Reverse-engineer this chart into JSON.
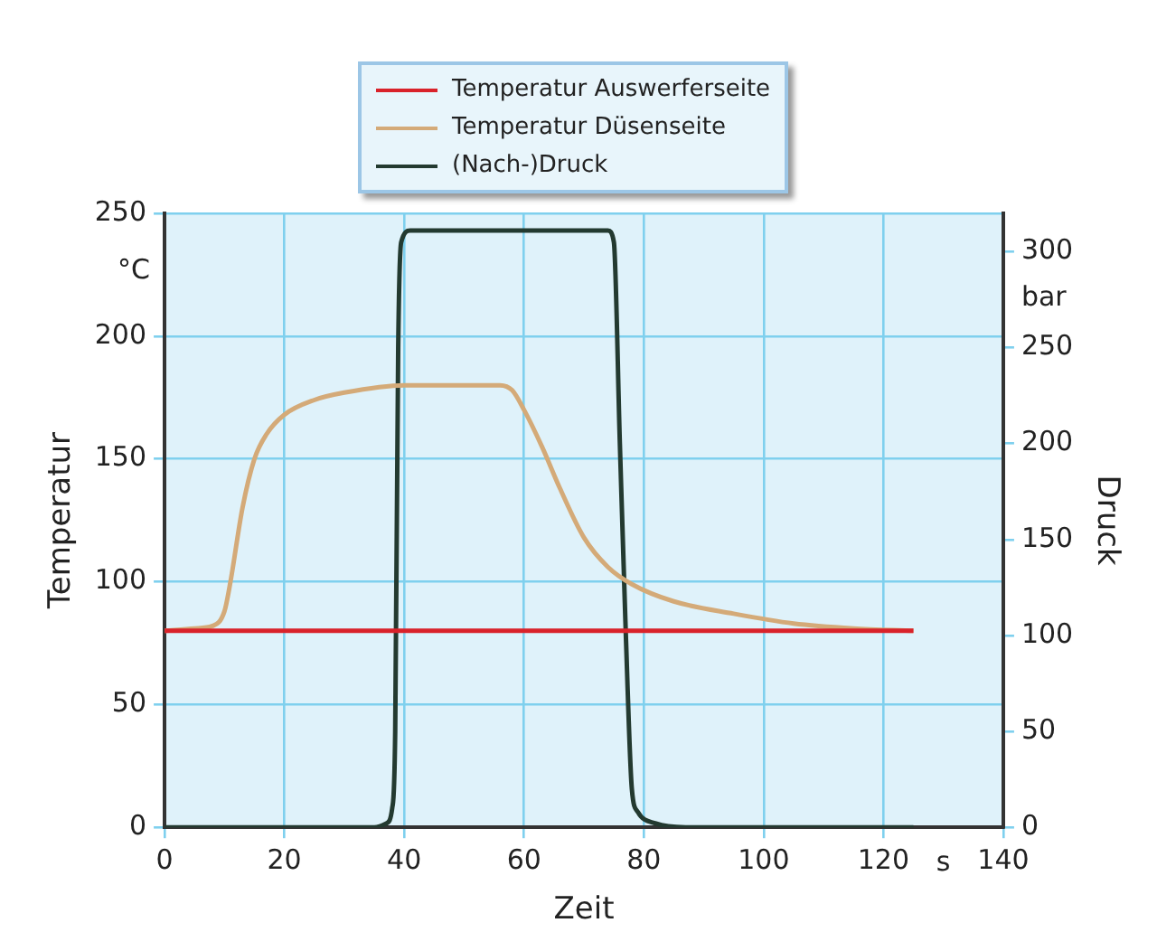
{
  "chart_data": {
    "type": "line",
    "xlabel": "Zeit",
    "ylabel": "Temperatur",
    "y2label": "Druck",
    "annotations": [
      "°C",
      "bar",
      "s"
    ],
    "xlim": [
      0,
      140
    ],
    "xticks": [
      0,
      20,
      40,
      60,
      80,
      100,
      120,
      140
    ],
    "ylim": [
      0,
      250
    ],
    "yticks": [
      0,
      50,
      100,
      150,
      200,
      250
    ],
    "y2lim": [
      0,
      320
    ],
    "y2ticks": [
      0,
      50,
      100,
      150,
      200,
      250,
      300
    ],
    "grid": true,
    "legend": "top",
    "marker": "none",
    "line_style": "solid",
    "series": [
      {
        "name": "Temperatur Auswerferseite",
        "color": "#d9222a",
        "x": [
          0,
          125
        ],
        "values": [
          80,
          80
        ]
      },
      {
        "name": "Temperatur Düsenseite",
        "color": "#d4aa78",
        "x": [
          0,
          5,
          8,
          10,
          11,
          13,
          15,
          17,
          20,
          25,
          30,
          40,
          50,
          56,
          58,
          60,
          63,
          66,
          70,
          74,
          78,
          85,
          95,
          105,
          115,
          125
        ],
        "values": [
          80,
          81,
          82,
          88,
          100,
          130,
          150,
          160,
          168,
          174,
          177,
          180,
          180,
          180,
          178,
          170,
          155,
          138,
          118,
          106,
          99,
          92,
          87,
          83,
          81,
          80
        ]
      },
      {
        "name": "(Nach-)Druck",
        "color": "#233a30",
        "axis": "y2",
        "x": [
          0,
          35,
          37,
          38,
          38.5,
          39,
          39.5,
          41,
          74,
          75,
          76,
          77,
          78,
          79,
          82,
          87,
          125
        ],
        "values": [
          0,
          0,
          2,
          10,
          50,
          250,
          305,
          311,
          311,
          305,
          200,
          100,
          20,
          8,
          2,
          0,
          0
        ]
      }
    ]
  }
}
